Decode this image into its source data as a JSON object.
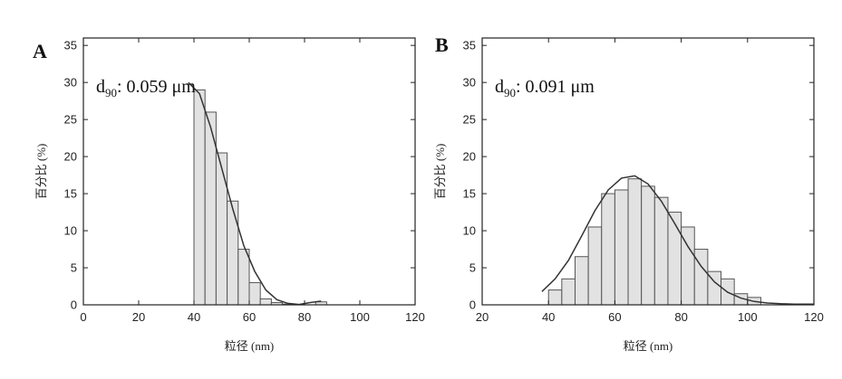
{
  "chart_data": [
    {
      "panel": "A",
      "type": "bar",
      "annotation": {
        "prefix": "d",
        "subscript": "90",
        "text": ": 0.059 μm"
      },
      "xlabel": "粒径 (nm)",
      "ylabel": "百分比 (%)",
      "xlim": [
        0,
        120
      ],
      "ylim": [
        0,
        36
      ],
      "x_ticks": [
        0,
        20,
        40,
        60,
        80,
        100,
        120
      ],
      "y_ticks": [
        0,
        5,
        10,
        15,
        20,
        25,
        30,
        35
      ],
      "bin_width": 4,
      "bars": [
        {
          "x": 40,
          "value": 29
        },
        {
          "x": 44,
          "value": 26
        },
        {
          "x": 48,
          "value": 20.5
        },
        {
          "x": 52,
          "value": 14
        },
        {
          "x": 56,
          "value": 7.5
        },
        {
          "x": 60,
          "value": 3
        },
        {
          "x": 64,
          "value": 0.8
        },
        {
          "x": 68,
          "value": 0.3
        },
        {
          "x": 72,
          "value": 0.1
        },
        {
          "x": 84,
          "value": 0.4
        }
      ],
      "fit_curve": {
        "x": [
          38,
          42,
          46,
          50,
          54,
          58,
          62,
          66,
          70,
          74,
          78,
          82,
          86
        ],
        "y": [
          30,
          28.5,
          24,
          18.5,
          13,
          8,
          4.5,
          2,
          0.7,
          0.2,
          0.05,
          0.3,
          0.5
        ]
      },
      "grid": false
    },
    {
      "panel": "B",
      "type": "bar",
      "annotation": {
        "prefix": "d",
        "subscript": "90",
        "text": ": 0.091 μm"
      },
      "xlabel": "粒径 (nm)",
      "ylabel": "百分比 (%)",
      "xlim": [
        20,
        120
      ],
      "ylim": [
        0,
        36
      ],
      "x_ticks": [
        20,
        40,
        60,
        80,
        100,
        120
      ],
      "y_ticks": [
        0,
        5,
        10,
        15,
        20,
        25,
        30,
        35
      ],
      "bin_width": 4,
      "bars": [
        {
          "x": 40,
          "value": 2
        },
        {
          "x": 44,
          "value": 3.5
        },
        {
          "x": 48,
          "value": 6.5
        },
        {
          "x": 52,
          "value": 10.5
        },
        {
          "x": 56,
          "value": 15
        },
        {
          "x": 60,
          "value": 15.5
        },
        {
          "x": 64,
          "value": 17
        },
        {
          "x": 68,
          "value": 16
        },
        {
          "x": 72,
          "value": 14.5
        },
        {
          "x": 76,
          "value": 12.5
        },
        {
          "x": 80,
          "value": 10.5
        },
        {
          "x": 84,
          "value": 7.5
        },
        {
          "x": 88,
          "value": 4.5
        },
        {
          "x": 92,
          "value": 3.5
        },
        {
          "x": 96,
          "value": 1.5
        },
        {
          "x": 100,
          "value": 1
        }
      ],
      "fit_curve": {
        "x": [
          38,
          42,
          46,
          50,
          54,
          58,
          62,
          66,
          70,
          74,
          78,
          82,
          86,
          90,
          94,
          98,
          102,
          106,
          110,
          114,
          120
        ],
        "y": [
          1.8,
          3.5,
          6,
          9.3,
          12.7,
          15.5,
          17.1,
          17.4,
          16.3,
          14,
          11,
          7.9,
          5.2,
          3.1,
          1.7,
          0.9,
          0.45,
          0.25,
          0.15,
          0.1,
          0.1
        ]
      },
      "grid": false
    }
  ]
}
